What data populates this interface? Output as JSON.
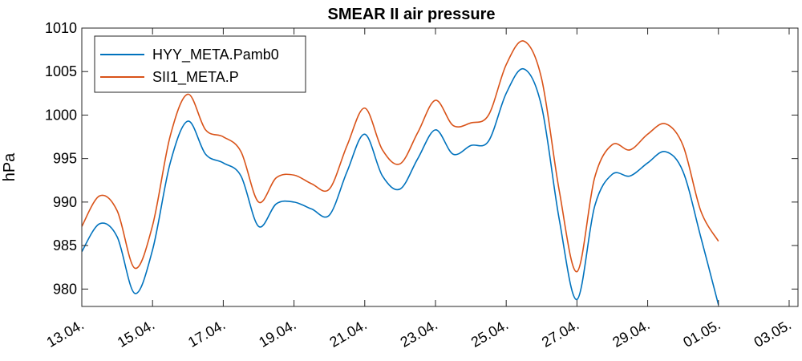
{
  "chart_data": {
    "type": "line",
    "title": "SMEAR II air pressure",
    "xlabel": "",
    "ylabel": "hPa",
    "ylim": [
      978,
      1010
    ],
    "xlim": [
      "2019-04-13",
      "2019-05-03"
    ],
    "grid": false,
    "legend_position": "top-left",
    "x_ticks": [
      "13.04.",
      "15.04.",
      "17.04.",
      "19.04.",
      "21.04.",
      "23.04.",
      "25.04.",
      "27.04.",
      "29.04.",
      "01.05.",
      "03.05."
    ],
    "y_ticks": [
      980,
      985,
      990,
      995,
      1000,
      1005,
      1010
    ],
    "x": [
      "2019-04-13 00:00",
      "2019-04-13 12:00",
      "2019-04-14 00:00",
      "2019-04-14 12:00",
      "2019-04-15 00:00",
      "2019-04-15 12:00",
      "2019-04-16 00:00",
      "2019-04-16 12:00",
      "2019-04-17 00:00",
      "2019-04-17 12:00",
      "2019-04-18 00:00",
      "2019-04-18 12:00",
      "2019-04-19 00:00",
      "2019-04-19 12:00",
      "2019-04-20 00:00",
      "2019-04-20 12:00",
      "2019-04-21 00:00",
      "2019-04-21 12:00",
      "2019-04-22 00:00",
      "2019-04-22 12:00",
      "2019-04-23 00:00",
      "2019-04-23 12:00",
      "2019-04-24 00:00",
      "2019-04-24 12:00",
      "2019-04-25 00:00",
      "2019-04-25 12:00",
      "2019-04-26 00:00",
      "2019-04-26 12:00",
      "2019-04-27 00:00",
      "2019-04-27 12:00",
      "2019-04-28 00:00",
      "2019-04-28 12:00",
      "2019-04-29 00:00",
      "2019-04-29 12:00",
      "2019-04-30 00:00",
      "2019-04-30 12:00",
      "2019-05-01 00:00",
      "2019-05-01 12:00",
      "2019-05-02 00:00",
      "2019-05-02 12:00",
      "2019-05-03 00:00"
    ],
    "series": [
      {
        "name": "HYY_META.Pamb0",
        "color": "#0072BD",
        "values": [
          984.3,
          987.5,
          986.0,
          979.5,
          984.5,
          994.5,
          999.3,
          995.5,
          994.5,
          993.0,
          987.2,
          989.8,
          990.0,
          989.2,
          988.5,
          993.5,
          997.8,
          993.0,
          991.5,
          995.0,
          998.3,
          995.5,
          996.5,
          997.0,
          1002.5,
          1005.3,
          1001.0,
          988.0,
          978.8,
          989.5,
          993.2,
          993.0,
          994.5,
          995.8,
          993.5,
          986.0,
          978.2,
          null,
          null,
          null,
          null
        ]
      },
      {
        "name": "SII1_META.P",
        "color": "#D95319",
        "values": [
          987.2,
          990.7,
          989.0,
          982.4,
          987.3,
          997.6,
          1002.4,
          998.3,
          997.5,
          995.8,
          990.0,
          992.8,
          993.1,
          992.1,
          991.5,
          996.5,
          1000.8,
          996.0,
          994.4,
          998.0,
          1001.7,
          998.8,
          999.1,
          1000.0,
          1005.8,
          1008.5,
          1004.2,
          991.3,
          982.0,
          992.8,
          996.6,
          996.0,
          997.8,
          999.0,
          996.5,
          989.0,
          985.5,
          null,
          null,
          null,
          null
        ]
      }
    ]
  }
}
